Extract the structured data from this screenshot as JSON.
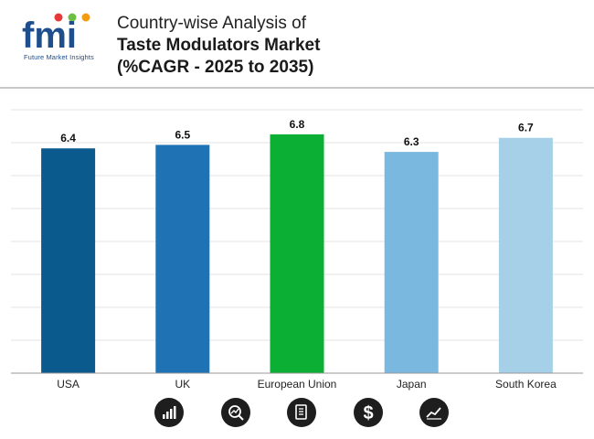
{
  "logo": {
    "text": "fmi",
    "tagline": "Future Market Insights"
  },
  "title": {
    "line1": "Country-wise Analysis of",
    "line2": "Taste Modulators Market",
    "line3": "(%CAGR - 2025 to 2035)"
  },
  "chart_data": {
    "type": "bar",
    "title": "Country-wise Analysis of Taste Modulators Market (%CAGR - 2025 to 2035)",
    "categories": [
      "USA",
      "UK",
      "European Union",
      "Japan",
      "South Korea"
    ],
    "values": [
      6.4,
      6.5,
      6.8,
      6.3,
      6.7
    ],
    "colors": [
      "#0b5a8e",
      "#1f72b4",
      "#0aaf33",
      "#7bb8e0",
      "#a6d0e8"
    ],
    "xlabel": "",
    "ylabel": "",
    "ylim": [
      0,
      7.5
    ],
    "grid": true,
    "legend": "none"
  },
  "footer_icons": [
    "bar-chart-growth-icon",
    "magnifier-trend-icon",
    "document-report-icon",
    "dollar-icon",
    "line-chart-icon"
  ]
}
